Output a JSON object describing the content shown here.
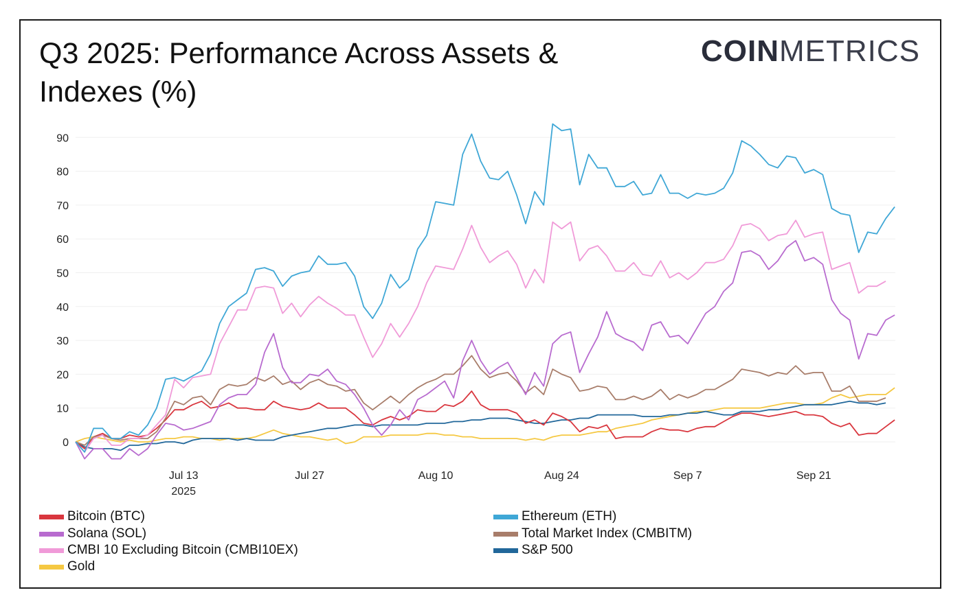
{
  "title": "Q3 2025: Performance Across Assets & Indexes (%)",
  "logo": {
    "bold": "COIN",
    "light": "METRICS"
  },
  "chart_data": {
    "type": "line",
    "title": "Q3 2025: Performance Across Assets & Indexes (%)",
    "xlabel": "",
    "ylabel": "",
    "x_start": "2025-07-01",
    "x_unit": "day",
    "ylim": [
      -7,
      95
    ],
    "yticks": [
      0,
      10,
      20,
      30,
      40,
      50,
      60,
      70,
      80,
      90
    ],
    "xticks": [
      {
        "day": 12,
        "label": "Jul 13",
        "sub": "2025"
      },
      {
        "day": 26,
        "label": "Jul 27"
      },
      {
        "day": 40,
        "label": "Aug 10"
      },
      {
        "day": 54,
        "label": "Aug 24"
      },
      {
        "day": 68,
        "label": "Sep 7"
      },
      {
        "day": 82,
        "label": "Sep 21"
      }
    ],
    "grid": true,
    "legend_position": "bottom",
    "series": [
      {
        "name": "Bitcoin (BTC)",
        "color": "#d9363e",
        "values": [
          0,
          -2,
          1.5,
          2.5,
          1,
          1,
          2,
          1.5,
          2,
          4,
          6.5,
          9.5,
          9.5,
          11,
          12,
          10,
          10.5,
          11.5,
          10,
          10,
          9.5,
          9.5,
          12,
          10.5,
          10,
          9.5,
          10,
          11.5,
          10,
          10,
          10,
          8,
          5.5,
          5,
          6.5,
          7.5,
          6.5,
          7.5,
          9.5,
          9,
          9,
          11,
          10.5,
          12,
          15,
          11,
          9.5,
          9.5,
          9.5,
          8.5,
          5.5,
          6.5,
          5,
          8.5,
          7.5,
          6,
          3,
          4.5,
          4,
          5,
          1,
          1.5,
          1.5,
          1.5,
          3,
          4,
          3.5,
          3.5,
          3,
          4,
          4.5,
          4.5,
          6,
          7.5,
          8.5,
          8.5,
          8,
          7.5,
          8,
          8.5,
          9,
          8,
          8,
          7.5,
          5.5,
          4.5,
          5.5,
          2,
          2.5,
          2.5,
          4.5,
          6.5
        ]
      },
      {
        "name": "Ethereum (ETH)",
        "color": "#3fa7d6",
        "values": [
          0,
          -3,
          4,
          4,
          1,
          1,
          3,
          2,
          5,
          10,
          18.5,
          19,
          18,
          19.5,
          21,
          26,
          35,
          40,
          42,
          44,
          51,
          51.5,
          50.5,
          46,
          49,
          50,
          50.5,
          55,
          52.5,
          52.5,
          53,
          49,
          40,
          36.5,
          41,
          49.5,
          45.5,
          48,
          57,
          61,
          71,
          70.5,
          70,
          85,
          91,
          83,
          78,
          77.5,
          80,
          73,
          64.5,
          74,
          70,
          94,
          92,
          92.5,
          76,
          85,
          81,
          81,
          75.5,
          75.5,
          77,
          73,
          73.5,
          79,
          73.5,
          73.5,
          72,
          73.5,
          73,
          73.5,
          75,
          79.5,
          89,
          87.5,
          85,
          82,
          81,
          84.5,
          84,
          79.5,
          80.5,
          79,
          69,
          67.5,
          67,
          56,
          62,
          61.5,
          66,
          69.5
        ]
      },
      {
        "name": "Solana (SOL)",
        "color": "#b86bcf",
        "values": [
          0,
          -5,
          -2,
          -2,
          -5,
          -5,
          -2,
          -4,
          -2,
          2,
          5.5,
          5,
          3.5,
          4,
          5,
          6,
          11,
          13,
          14,
          14,
          17,
          26.5,
          32,
          22,
          17.5,
          17.5,
          20,
          19.5,
          21.5,
          18,
          17,
          14,
          10,
          5,
          2,
          5,
          9.5,
          6.5,
          12.5,
          14,
          16,
          18,
          13,
          24,
          30,
          24,
          20,
          22,
          23.5,
          19,
          14,
          20.5,
          16.5,
          29,
          31.5,
          32.5,
          20.5,
          26,
          31,
          38.5,
          32,
          30.5,
          29.5,
          27,
          34.5,
          35.5,
          31,
          31.5,
          29,
          33.5,
          38,
          40,
          44.5,
          47,
          56,
          56.5,
          55,
          51,
          53.5,
          57.5,
          59.5,
          53.5,
          54.5,
          52.5,
          42,
          38,
          36,
          24.5,
          32,
          31.5,
          36,
          37.5
        ]
      },
      {
        "name": "Total Market Index (CMBITM)",
        "color": "#a87d6a",
        "values": [
          0,
          -1,
          1.5,
          2,
          1,
          0.5,
          1,
          1,
          1,
          3,
          7,
          12,
          11,
          13,
          13.5,
          11,
          15.5,
          17,
          16.5,
          17,
          19,
          18,
          19.5,
          17,
          18,
          15.5,
          17.5,
          18.5,
          17,
          16.5,
          15,
          15.5,
          11.5,
          9.5,
          11.5,
          13.5,
          11.5,
          14,
          16,
          17.5,
          18.5,
          20,
          20,
          22.5,
          25.5,
          21.5,
          19,
          20,
          20.5,
          18,
          14.5,
          16.5,
          14,
          21.5,
          20,
          19,
          15,
          15.5,
          16.5,
          16,
          12.5,
          12.5,
          13.5,
          12.5,
          13.5,
          15.5,
          12.5,
          14,
          13,
          14,
          15.5,
          15.5,
          17,
          18.5,
          21.5,
          21,
          20.5,
          19.5,
          20.5,
          20,
          22.5,
          20,
          20.5,
          20.5,
          15,
          15,
          16.5,
          12,
          12,
          12,
          13
        ]
      },
      {
        "name": "CMBI 10 Excluding Bitcoin (CMBI10EX)",
        "color": "#f09ad8",
        "values": [
          0,
          -3,
          1,
          2,
          -1,
          -1,
          1,
          1,
          2,
          5,
          8,
          18.5,
          16,
          19,
          19.5,
          20,
          29,
          34,
          39,
          39,
          45.5,
          46,
          45.5,
          38,
          41,
          37,
          40.5,
          43,
          41,
          39.5,
          37.5,
          37.5,
          31,
          25,
          29,
          35,
          31,
          35,
          40,
          47,
          52,
          51.5,
          51,
          57,
          64,
          57.5,
          53,
          55,
          56.5,
          52.5,
          45.5,
          51,
          47,
          65,
          63,
          65,
          53.5,
          57,
          58,
          55,
          50.5,
          50.5,
          53,
          49.5,
          49,
          53.5,
          48.5,
          50,
          48,
          50,
          53,
          53,
          54,
          58,
          64,
          64.5,
          63,
          59.5,
          61,
          61.5,
          65.5,
          60.5,
          61.5,
          62,
          51,
          52,
          53,
          44,
          46,
          46,
          47.5
        ]
      },
      {
        "name": "S&P 500",
        "color": "#21679a",
        "values": [
          0,
          -1.5,
          -2,
          -2,
          -2,
          -2.5,
          -1,
          -1,
          -0.5,
          -0.5,
          0,
          0,
          -0.5,
          0.5,
          1,
          1,
          1,
          1,
          0.5,
          1,
          0.5,
          0.5,
          0.5,
          1.5,
          2,
          2.5,
          3,
          3.5,
          4,
          4,
          4.5,
          5,
          5,
          4.5,
          5,
          5,
          5,
          5,
          5,
          5.5,
          5.5,
          5.5,
          6,
          6,
          6.5,
          6.5,
          7,
          7,
          7,
          6.5,
          6,
          5.5,
          5.5,
          6,
          6.5,
          6.5,
          7,
          7,
          8,
          8,
          8,
          8,
          8,
          7.5,
          7.5,
          7.5,
          8,
          8,
          8.5,
          8.5,
          9,
          8.5,
          8,
          8,
          9,
          9,
          9,
          9.5,
          9.5,
          10,
          10.5,
          11,
          11,
          11,
          11,
          11.5,
          12,
          11.5,
          11.5,
          11,
          11.5
        ]
      },
      {
        "name": "Gold",
        "color": "#f5c842",
        "values": [
          0,
          1,
          1.5,
          1,
          0.5,
          0,
          0.5,
          0,
          0,
          0.5,
          1,
          1,
          1.5,
          1.5,
          1,
          1,
          0.5,
          1,
          1,
          1,
          1.5,
          2.5,
          3.5,
          2.5,
          2,
          1.5,
          1.5,
          1,
          0.5,
          1,
          -0.5,
          0,
          1.5,
          1.5,
          1.5,
          2,
          2,
          2,
          2,
          2.5,
          2.5,
          2,
          2,
          1.5,
          1.5,
          1,
          1,
          1,
          1,
          1,
          0.5,
          1,
          0.5,
          1.5,
          2,
          2,
          2,
          2.5,
          3,
          3,
          4,
          4.5,
          5,
          5.5,
          6.5,
          7,
          7.5,
          8,
          8.5,
          9,
          9,
          9.5,
          10,
          10,
          10,
          10,
          10,
          10.5,
          11,
          11.5,
          11.5,
          11,
          11,
          11.5,
          13,
          14,
          13,
          13.5,
          14,
          14,
          14,
          16
        ]
      }
    ]
  }
}
